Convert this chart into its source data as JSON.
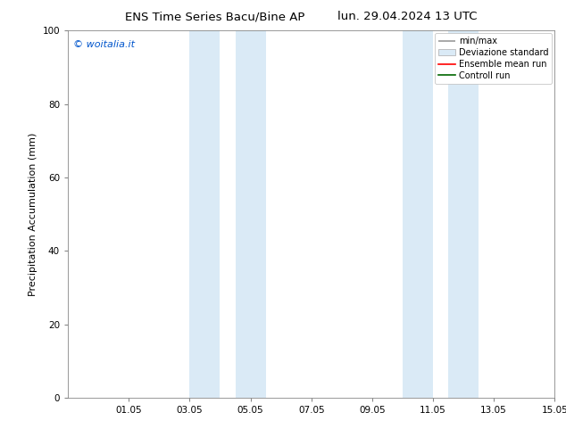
{
  "title_left": "ENS Time Series Bacu/Bine AP",
  "title_right": "lun. 29.04.2024 13 UTC",
  "ylabel": "Precipitation Accumulation (mm)",
  "watermark": "© woitalia.it",
  "watermark_color": "#0055cc",
  "xlim_start": 0,
  "xlim_end": 16,
  "ylim": [
    0,
    100
  ],
  "yticks": [
    0,
    20,
    40,
    60,
    80,
    100
  ],
  "xtick_positions": [
    2,
    4,
    6,
    8,
    10,
    12,
    14,
    16
  ],
  "xtick_labels": [
    "01.05",
    "03.05",
    "05.05",
    "07.05",
    "09.05",
    "11.05",
    "13.05",
    "15.05"
  ],
  "shaded_bands": [
    {
      "xstart": 4.0,
      "xend": 5.0
    },
    {
      "xstart": 5.5,
      "xend": 6.5
    },
    {
      "xstart": 11.0,
      "xend": 12.0
    },
    {
      "xstart": 12.5,
      "xend": 13.5
    }
  ],
  "shade_color": "#daeaf6",
  "bg_color": "#ffffff",
  "plot_bg_color": "#ffffff",
  "spine_color": "#888888",
  "tick_color": "#888888",
  "title_fontsize": 9.5,
  "label_fontsize": 8,
  "tick_fontsize": 7.5,
  "watermark_fontsize": 8,
  "legend_fontsize": 7
}
